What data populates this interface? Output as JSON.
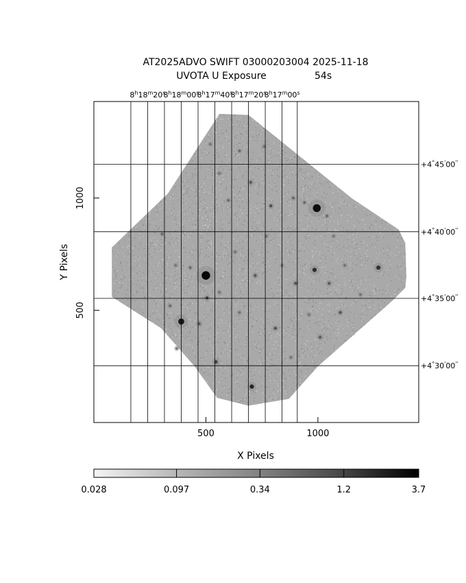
{
  "chart_data": {
    "type": "heatmap",
    "title": "AT2025ADVO SWIFT 03000203004 2025-11-18",
    "subtitle_left": "UVOTA U Exposure",
    "subtitle_right": "54s",
    "xlabel": "X Pixels",
    "ylabel": "Y Pixels",
    "xlim": [
      0,
      1450
    ],
    "ylim": [
      0,
      1430
    ],
    "x_ticks": [
      500,
      1000
    ],
    "y_ticks": [
      500,
      1000
    ],
    "ra_ticks": [
      {
        "h": "8",
        "m": "18",
        "s": "20",
        "x": 240
      },
      {
        "h": "8",
        "m": "18",
        "s": "00",
        "x": 390
      },
      {
        "h": "8",
        "m": "17",
        "s": "40",
        "x": 540
      },
      {
        "h": "8",
        "m": "17",
        "s": "20",
        "x": 690
      },
      {
        "h": "8",
        "m": "17",
        "s": "00",
        "x": 840
      }
    ],
    "ra_minor_x": [
      165,
      315,
      465,
      615,
      765,
      908
    ],
    "dec_ticks": [
      {
        "deg": "+4",
        "min": "45",
        "sec": "00",
        "y": 1150
      },
      {
        "deg": "+4",
        "min": "40",
        "sec": "00",
        "y": 850
      },
      {
        "deg": "+4",
        "min": "35",
        "sec": "00",
        "y": 553
      },
      {
        "deg": "+4",
        "min": "30",
        "sec": "00",
        "y": 253
      }
    ],
    "field_polygon": [
      [
        560,
        1375
      ],
      [
        690,
        1370
      ],
      [
        1150,
        1000
      ],
      [
        1360,
        860
      ],
      [
        1390,
        800
      ],
      [
        1395,
        650
      ],
      [
        1390,
        600
      ],
      [
        1330,
        540
      ],
      [
        1000,
        250
      ],
      [
        870,
        105
      ],
      [
        690,
        75
      ],
      [
        550,
        110
      ],
      [
        450,
        250
      ],
      [
        300,
        420
      ],
      [
        80,
        560
      ],
      [
        80,
        780
      ],
      [
        330,
        1020
      ]
    ],
    "sources": [
      {
        "x": 500,
        "y": 655,
        "v": 3.2,
        "r": 14
      },
      {
        "x": 390,
        "y": 450,
        "v": 2.2,
        "r": 10
      },
      {
        "x": 995,
        "y": 955,
        "v": 2.8,
        "r": 13
      },
      {
        "x": 985,
        "y": 680,
        "v": 1.5,
        "r": 7
      },
      {
        "x": 705,
        "y": 160,
        "v": 1.8,
        "r": 7
      },
      {
        "x": 1270,
        "y": 690,
        "v": 1.4,
        "r": 7
      },
      {
        "x": 545,
        "y": 270,
        "v": 0.9,
        "r": 6
      },
      {
        "x": 505,
        "y": 555,
        "v": 1.0,
        "r": 5
      },
      {
        "x": 810,
        "y": 420,
        "v": 0.8,
        "r": 5
      },
      {
        "x": 700,
        "y": 1070,
        "v": 0.6,
        "r": 5
      },
      {
        "x": 790,
        "y": 965,
        "v": 0.8,
        "r": 5
      },
      {
        "x": 900,
        "y": 620,
        "v": 0.7,
        "r": 5
      },
      {
        "x": 720,
        "y": 655,
        "v": 0.6,
        "r": 5
      },
      {
        "x": 1100,
        "y": 490,
        "v": 0.7,
        "r": 5
      },
      {
        "x": 340,
        "y": 520,
        "v": 0.5,
        "r": 4
      },
      {
        "x": 470,
        "y": 440,
        "v": 0.6,
        "r": 5
      },
      {
        "x": 1050,
        "y": 620,
        "v": 0.6,
        "r": 5
      },
      {
        "x": 1010,
        "y": 380,
        "v": 0.6,
        "r": 5
      },
      {
        "x": 940,
        "y": 980,
        "v": 0.5,
        "r": 4
      },
      {
        "x": 600,
        "y": 990,
        "v": 0.5,
        "r": 4
      },
      {
        "x": 650,
        "y": 1210,
        "v": 0.5,
        "r": 4
      },
      {
        "x": 890,
        "y": 1000,
        "v": 0.5,
        "r": 4
      },
      {
        "x": 760,
        "y": 1230,
        "v": 0.4,
        "r": 4
      },
      {
        "x": 1070,
        "y": 830,
        "v": 0.4,
        "r": 4
      },
      {
        "x": 1040,
        "y": 920,
        "v": 0.5,
        "r": 4
      },
      {
        "x": 880,
        "y": 290,
        "v": 0.4,
        "r": 4
      },
      {
        "x": 430,
        "y": 690,
        "v": 0.5,
        "r": 4
      },
      {
        "x": 305,
        "y": 840,
        "v": 0.5,
        "r": 4
      },
      {
        "x": 365,
        "y": 700,
        "v": 0.4,
        "r": 4
      },
      {
        "x": 1190,
        "y": 570,
        "v": 0.4,
        "r": 4
      },
      {
        "x": 650,
        "y": 490,
        "v": 0.4,
        "r": 4
      },
      {
        "x": 560,
        "y": 580,
        "v": 0.4,
        "r": 4
      },
      {
        "x": 630,
        "y": 760,
        "v": 0.4,
        "r": 4
      },
      {
        "x": 1120,
        "y": 700,
        "v": 0.4,
        "r": 4
      },
      {
        "x": 770,
        "y": 830,
        "v": 0.4,
        "r": 4
      },
      {
        "x": 520,
        "y": 1240,
        "v": 0.4,
        "r": 4
      },
      {
        "x": 560,
        "y": 1110,
        "v": 0.4,
        "r": 4
      },
      {
        "x": 370,
        "y": 330,
        "v": 0.4,
        "r": 4
      },
      {
        "x": 960,
        "y": 480,
        "v": 0.4,
        "r": 4
      },
      {
        "x": 840,
        "y": 700,
        "v": 0.4,
        "r": 4
      }
    ],
    "colorbar": {
      "tick_labels": [
        "0.028",
        "0.097",
        "0.34",
        "1.2",
        "3.7"
      ],
      "tick_values": [
        0.028,
        0.097,
        0.34,
        1.2,
        3.7
      ],
      "min": 0.028,
      "max": 3.7,
      "scale": "log"
    }
  }
}
